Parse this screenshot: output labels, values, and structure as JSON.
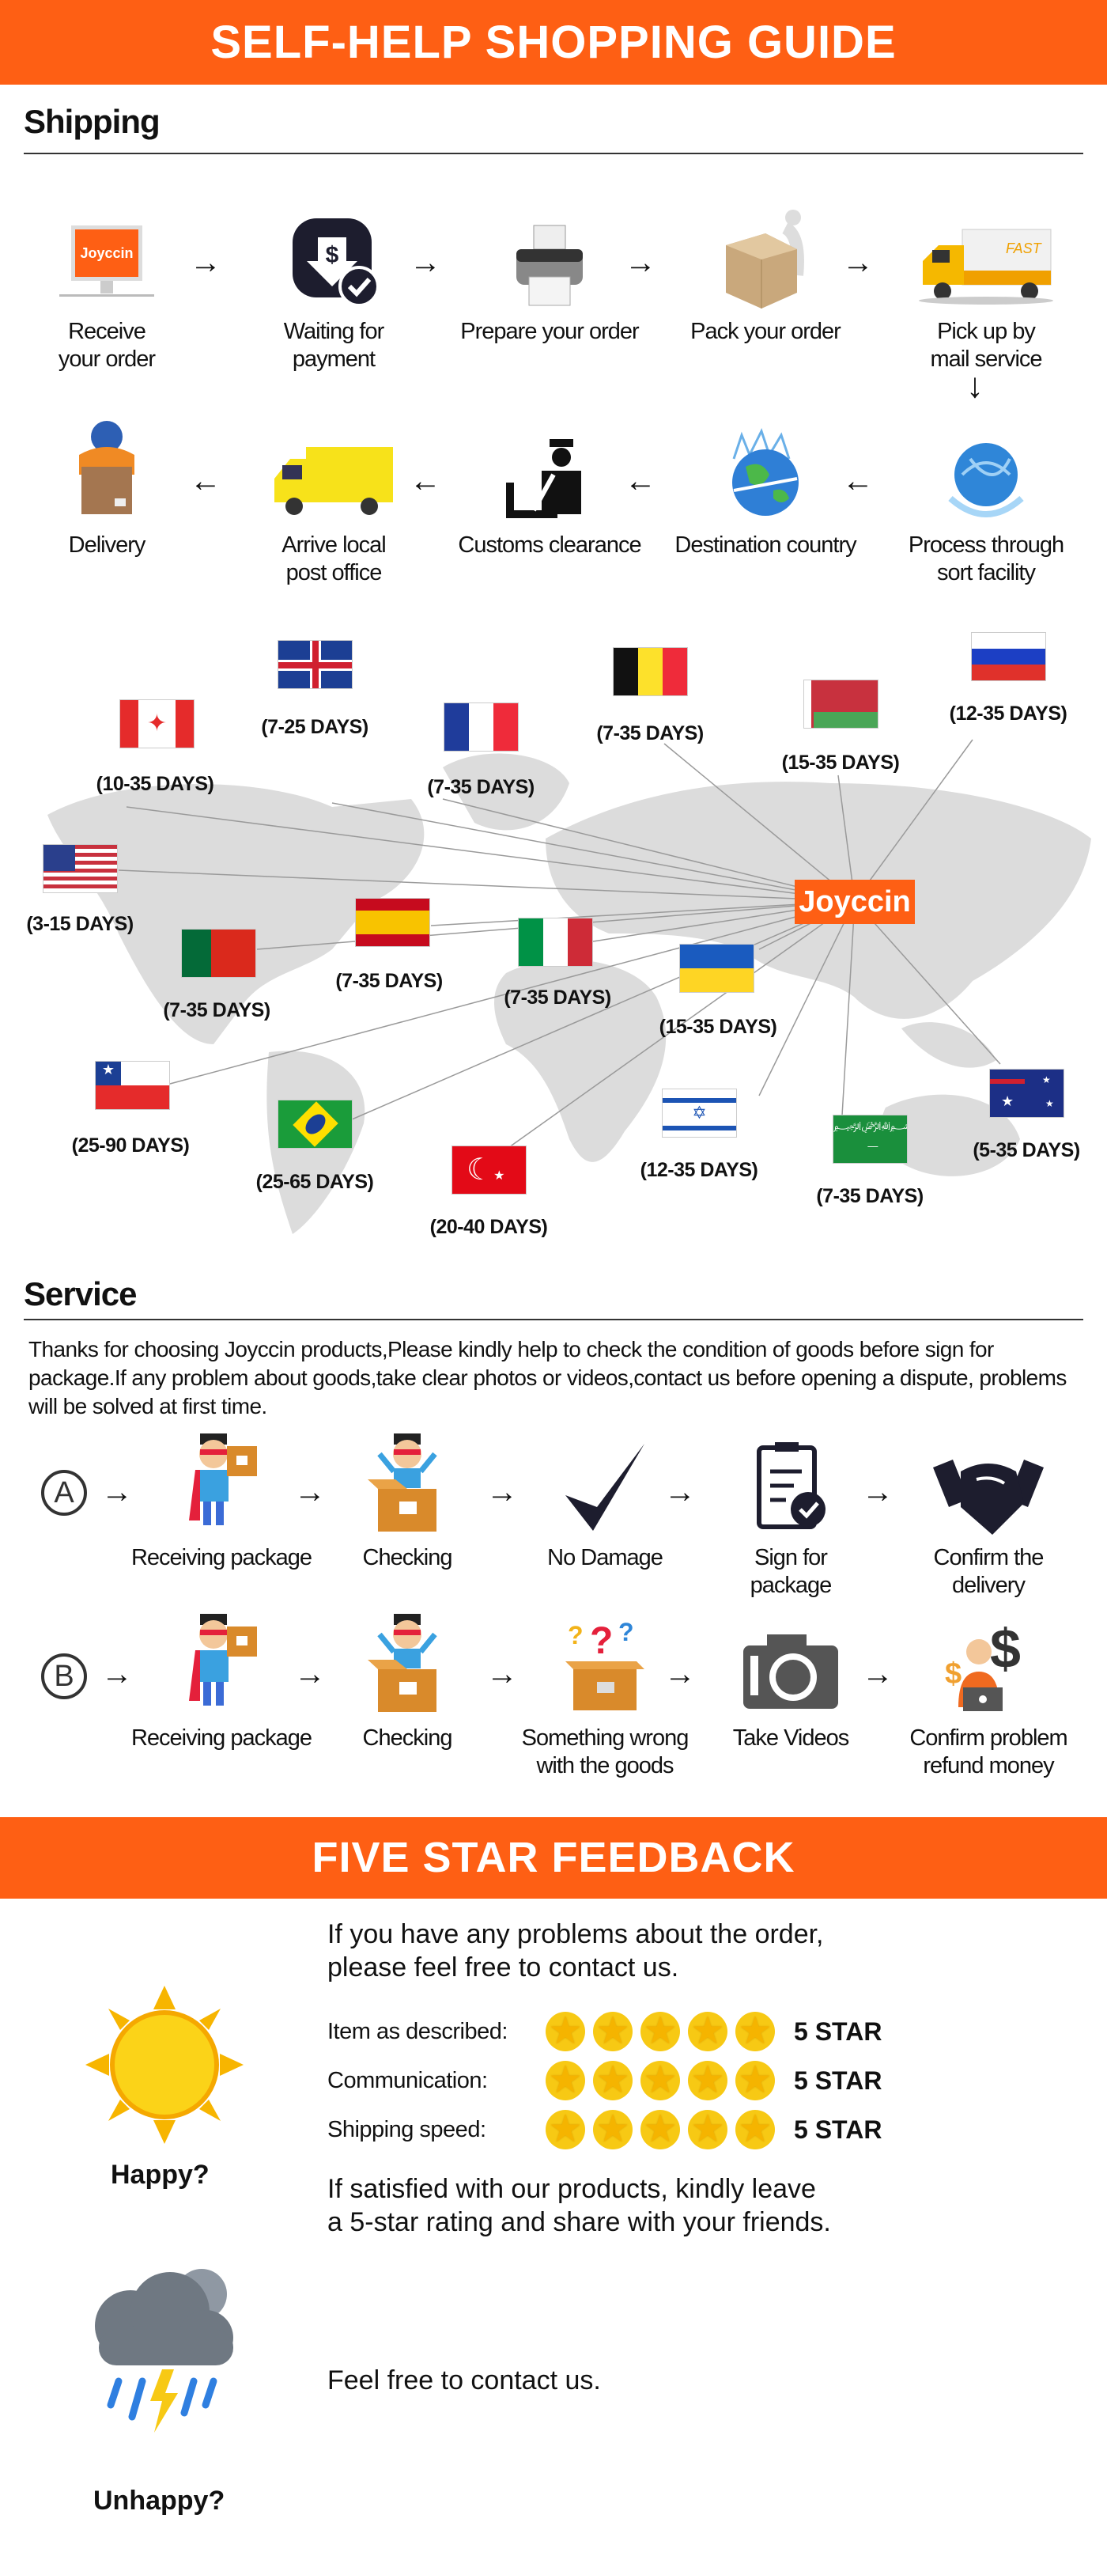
{
  "header": {
    "title": "SELF-HELP SHOPPING GUIDE"
  },
  "shipping": {
    "title": "Shipping",
    "row1": [
      {
        "label": "Receive\nyour order",
        "icon": "monitor-joyccin-icon",
        "screen_text": "Joyccin"
      },
      {
        "label": "Waiting for\npayment",
        "icon": "payment-check-icon"
      },
      {
        "label": "Prepare your order",
        "icon": "printer-icon"
      },
      {
        "label": "Pack your order",
        "icon": "package-icon"
      },
      {
        "label": "Pick up by\nmail service",
        "icon": "delivery-truck-icon",
        "truck_text": "FAST"
      }
    ],
    "row2": [
      {
        "label": "Delivery",
        "icon": "courier-icon"
      },
      {
        "label": "Arrive local\npost office",
        "icon": "van-icon"
      },
      {
        "label": "Customs clearance",
        "icon": "customs-icon"
      },
      {
        "label": "Destination country",
        "icon": "globe-plane-icon"
      },
      {
        "label": "Process through\nsort facility",
        "icon": "globe-icon"
      }
    ],
    "map": {
      "hub": "Joyccin",
      "destinations": [
        {
          "flag": "uk-flag",
          "days": "(7-25 DAYS)"
        },
        {
          "flag": "canada-flag",
          "days": "(10-35 DAYS)"
        },
        {
          "flag": "france-flag",
          "days": "(7-35 DAYS)"
        },
        {
          "flag": "belgium-flag",
          "days": "(7-35 DAYS)"
        },
        {
          "flag": "belarus-flag",
          "days": "(15-35 DAYS)"
        },
        {
          "flag": "russia-flag",
          "days": "(12-35 DAYS)"
        },
        {
          "flag": "usa-flag",
          "days": "(3-15 DAYS)"
        },
        {
          "flag": "spain-flag",
          "days": "(7-35 DAYS)"
        },
        {
          "flag": "portugal-flag",
          "days": "(7-35 DAYS)"
        },
        {
          "flag": "italy-flag",
          "days": "(7-35 DAYS)"
        },
        {
          "flag": "ukraine-flag",
          "days": "(15-35 DAYS)"
        },
        {
          "flag": "chile-flag",
          "days": "(25-90 DAYS)"
        },
        {
          "flag": "brazil-flag",
          "days": "(25-65 DAYS)"
        },
        {
          "flag": "turkey-flag",
          "days": "(20-40 DAYS)"
        },
        {
          "flag": "israel-flag",
          "days": "(12-35 DAYS)"
        },
        {
          "flag": "saudi-arabia-flag",
          "days": "(7-35 DAYS)"
        },
        {
          "flag": "australia-flag",
          "days": "(5-35 DAYS)"
        }
      ]
    }
  },
  "service": {
    "title": "Service",
    "paragraph": "Thanks for choosing Joyccin products,Please kindly help to check the condition of goods before sign for package.If any problem about goods,take clear photos or videos,contact us before opening a dispute, problems will be solved at first time.",
    "rowA": {
      "marker": "A",
      "steps": [
        {
          "label": "Receiving package",
          "icon": "hero-holding-box-icon"
        },
        {
          "label": "Checking",
          "icon": "hero-in-box-icon"
        },
        {
          "label": "No Damage",
          "icon": "checkmark-icon"
        },
        {
          "label": "Sign for\npackage",
          "icon": "clipboard-check-icon"
        },
        {
          "label": "Confirm the\ndelivery",
          "icon": "handshake-icon"
        }
      ]
    },
    "rowB": {
      "marker": "B",
      "steps": [
        {
          "label": "Receiving package",
          "icon": "hero-holding-box-icon"
        },
        {
          "label": "Checking",
          "icon": "hero-in-box-icon"
        },
        {
          "label": "Something wrong\nwith the goods",
          "icon": "box-question-icon"
        },
        {
          "label": "Take Videos",
          "icon": "camera-icon"
        },
        {
          "label": "Confirm problem\nrefund money",
          "icon": "support-refund-icon"
        }
      ]
    }
  },
  "feedback": {
    "title": "FIVE STAR FEEDBACK",
    "intro": "If you have any problems about the order,\nplease feel free to contact us.",
    "happy_label": "Happy?",
    "ratings": [
      {
        "label": "Item as described:",
        "stars": 5,
        "value": "5 STAR"
      },
      {
        "label": "Communication:",
        "stars": 5,
        "value": "5 STAR"
      },
      {
        "label": "Shipping speed:",
        "stars": 5,
        "value": "5 STAR"
      }
    ],
    "satisfied": "If satisfied with our products, kindly leave\na 5-star rating and share with your friends.",
    "unhappy_label": "Unhappy?",
    "unhappy_text": "Feel free to contact us."
  },
  "colors": {
    "accent": "#fe5f14",
    "star": "#f7c914"
  }
}
